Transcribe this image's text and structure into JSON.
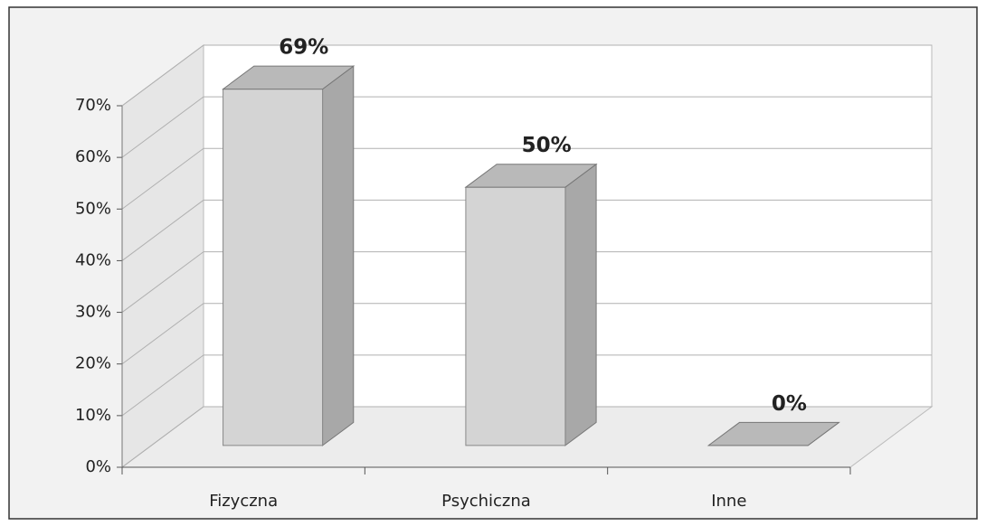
{
  "chart_data": {
    "type": "bar3d",
    "categories": [
      "Fizyczna",
      "Psychiczna",
      "Inne"
    ],
    "values": [
      69,
      50,
      0
    ],
    "value_labels": [
      "69%",
      "50%",
      "0%"
    ],
    "color": "#d4d4d4",
    "ylim": [
      0,
      70
    ],
    "yticks": [
      {
        "value": 0,
        "label": "0%"
      },
      {
        "value": 10,
        "label": "10%"
      },
      {
        "value": 20,
        "label": "20%"
      },
      {
        "value": 30,
        "label": "30%"
      },
      {
        "value": 40,
        "label": "40%"
      },
      {
        "value": 50,
        "label": "50%"
      },
      {
        "value": 60,
        "label": "60%"
      },
      {
        "value": 70,
        "label": "70%"
      }
    ],
    "grid": true
  }
}
